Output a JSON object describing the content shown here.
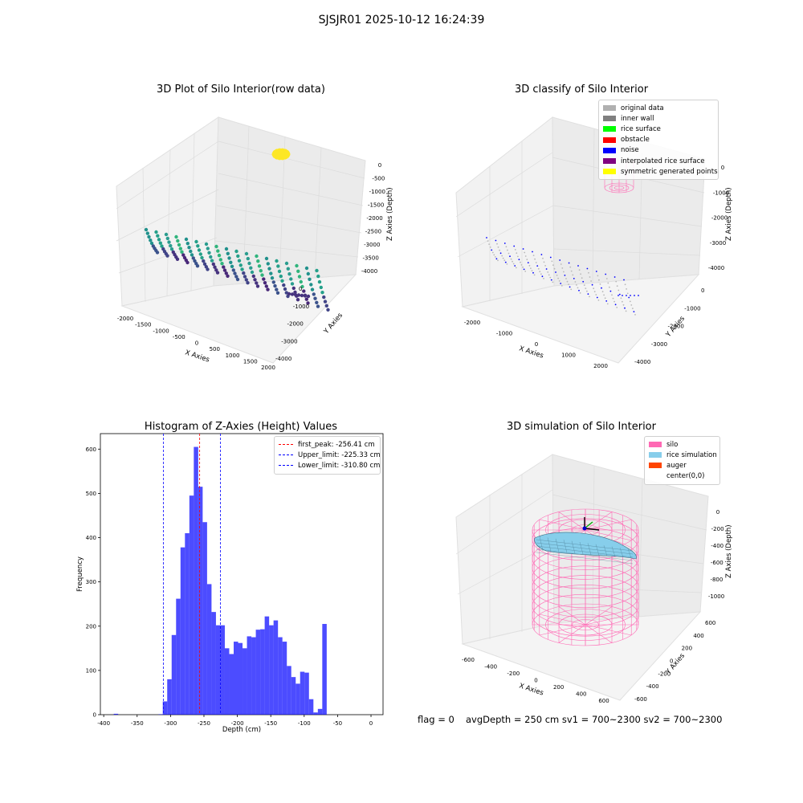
{
  "suptitle": "SJSJR01 2025-10-12 16:24:39",
  "panels": {
    "raw": {
      "title": "3D Plot of Silo Interior(row data)",
      "xlabel": "X Axies",
      "ylabel": "Y Axies",
      "zlabel": "Z Axies (Depth)",
      "xticks": [
        "-2000",
        "-1500",
        "-1000",
        "-500",
        "0",
        "500",
        "1000",
        "1500",
        "2000"
      ],
      "yticks": [
        "0",
        "-1000",
        "-2000",
        "-3000",
        "-4000"
      ],
      "zticks": [
        "0",
        "-500",
        "-1000",
        "-1500",
        "-2000",
        "-2500",
        "-3000",
        "-3500",
        "-4000"
      ]
    },
    "classify": {
      "title": "3D classify of Silo Interior",
      "xlabel": "X Axies",
      "ylabel": "Y Axies",
      "zlabel": "Z Axies (Depth)",
      "xticks": [
        "-2000",
        "-1000",
        "0",
        "1000",
        "2000"
      ],
      "yticks": [
        "0",
        "-1000",
        "-2000",
        "-3000",
        "-4000"
      ],
      "zticks": [
        "0",
        "-1000",
        "-2000",
        "-3000",
        "-4000"
      ],
      "legend": [
        {
          "label": "original data",
          "color": "#b0b0b0"
        },
        {
          "label": "inner wall",
          "color": "#808080"
        },
        {
          "label": "rice surface",
          "color": "#00ff00"
        },
        {
          "label": "obstacle",
          "color": "#ff0000"
        },
        {
          "label": "noise",
          "color": "#0000ff"
        },
        {
          "label": "interpolated rice surface",
          "color": "#800080"
        },
        {
          "label": "symmetric generated points",
          "color": "#ffff00"
        }
      ]
    },
    "simulation": {
      "title": "3D simulation of Silo Interior",
      "xlabel": "X Axies",
      "ylabel": "Y Axies",
      "zlabel": "Z Axies (Depth)",
      "xticks": [
        "-600",
        "-400",
        "-200",
        "0",
        "200",
        "400",
        "600"
      ],
      "yticks": [
        "600",
        "400",
        "200",
        "0",
        "-200",
        "-400",
        "-600"
      ],
      "zticks": [
        "0",
        "-200",
        "-400",
        "-600",
        "-800",
        "-1000"
      ],
      "legend": [
        {
          "label": "silo",
          "color": "#ff69b4"
        },
        {
          "label": "rice simulation",
          "color": "#87ceeb"
        },
        {
          "label": "auger",
          "color": "#ff4500"
        },
        {
          "label": "center(0,0)",
          "color": ""
        }
      ]
    }
  },
  "chart_data": {
    "type": "bar",
    "title": "Histogram of Z-Axies (Height) Values",
    "xlabel": "Depth (cm)",
    "ylabel": "Frequency",
    "xlim": [
      -405,
      18
    ],
    "ylim": [
      0,
      635
    ],
    "xticks": [
      -400,
      -350,
      -300,
      -250,
      -200,
      -150,
      -100,
      -50,
      0
    ],
    "yticks": [
      0,
      100,
      200,
      300,
      400,
      500,
      600
    ],
    "bin_start": -311.6,
    "bin_width": 6.63,
    "values": [
      30,
      80,
      180,
      262,
      378,
      410,
      495,
      605,
      515,
      435,
      295,
      232,
      202,
      202,
      150,
      137,
      165,
      162,
      150,
      177,
      175,
      192,
      193,
      222,
      202,
      213,
      175,
      165,
      110,
      85,
      70,
      97,
      95,
      35,
      5,
      13,
      205
    ],
    "outliers": [
      {
        "x": -385,
        "y": 2
      },
      {
        "x": -318,
        "y": 1
      }
    ],
    "bar_color": "#0000ff",
    "lines": [
      {
        "label": "first_peak: -256.41 cm",
        "x": -256.41,
        "color": "#ff0000"
      },
      {
        "label": "Upper_limit: -225.33 cm",
        "x": -225.33,
        "color": "#0000ff"
      },
      {
        "label": "Lower_limit: -310.80 cm",
        "x": -310.8,
        "color": "#0000ff"
      }
    ],
    "legend_position": "upper right"
  },
  "footer": {
    "flag": "flag = 0",
    "avg": "avgDepth = 250 cm  sv1 = 700~2300  sv2 = 700~2300"
  }
}
